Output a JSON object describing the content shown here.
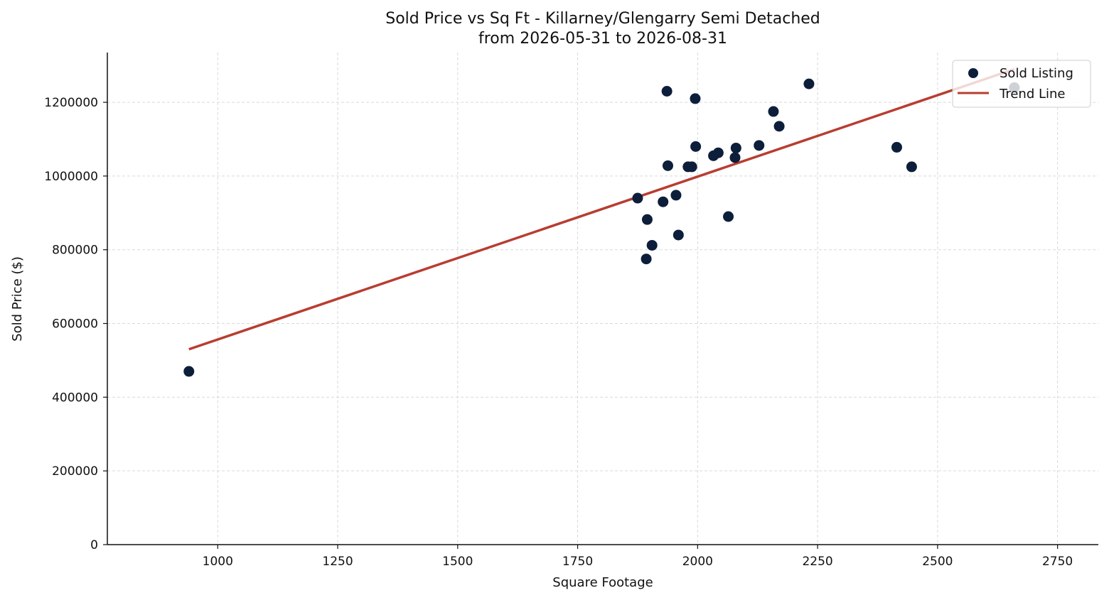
{
  "chart_data": {
    "type": "scatter",
    "title": "Sold Price vs Sq Ft - Killarney/Glengarry Semi Detached",
    "subtitle": "from 2026-05-31 to 2026-08-31",
    "xlabel": "Square Footage",
    "ylabel": "Sold Price ($)",
    "xlim": [
      770,
      2835
    ],
    "ylim": [
      0,
      1335000
    ],
    "xticks": [
      1000,
      1250,
      1500,
      1750,
      2000,
      2250,
      2500,
      2750
    ],
    "yticks": [
      0,
      200000,
      400000,
      600000,
      800000,
      1000000,
      1200000
    ],
    "grid": true,
    "legend_position": "top-right",
    "colors": {
      "points": "#0c1e3a",
      "trend": "#b83d31",
      "grid": "#d9d9d9",
      "axis": "#111111"
    },
    "series": [
      {
        "name": "Sold Listing",
        "points": [
          [
            940,
            470000
          ],
          [
            1875,
            940000
          ],
          [
            1893,
            775000
          ],
          [
            1895,
            882000
          ],
          [
            1905,
            812000
          ],
          [
            1928,
            930000
          ],
          [
            1936,
            1230000
          ],
          [
            1938,
            1028000
          ],
          [
            1955,
            948000
          ],
          [
            1960,
            840000
          ],
          [
            1980,
            1025000
          ],
          [
            1988,
            1025000
          ],
          [
            1995,
            1210000
          ],
          [
            1996,
            1080000
          ],
          [
            2033,
            1055000
          ],
          [
            2043,
            1063000
          ],
          [
            2064,
            890000
          ],
          [
            2078,
            1050000
          ],
          [
            2080,
            1076000
          ],
          [
            2128,
            1083000
          ],
          [
            2158,
            1175000
          ],
          [
            2170,
            1135000
          ],
          [
            2232,
            1250000
          ],
          [
            2415,
            1078000
          ],
          [
            2446,
            1025000
          ],
          [
            2660,
            1240000
          ]
        ]
      },
      {
        "name": "Trend Line",
        "line": [
          [
            940,
            530000
          ],
          [
            2660,
            1290000
          ]
        ]
      }
    ]
  }
}
